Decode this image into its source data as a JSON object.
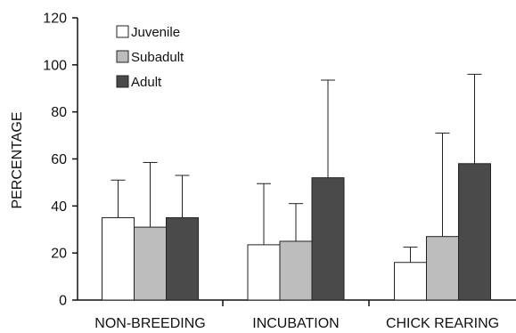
{
  "chart_data": {
    "type": "bar",
    "ylabel": "PERCENTAGE",
    "xlabel": "",
    "ylim": [
      0,
      120
    ],
    "yticks": [
      0,
      20,
      40,
      60,
      80,
      100,
      120
    ],
    "categories": [
      "NON-BREEDING",
      "INCUBATION",
      "CHICK REARING"
    ],
    "legend_position": "top-left",
    "grid": false,
    "series": [
      {
        "name": "Juvenile",
        "color": "#ffffff",
        "values": [
          35,
          23.5,
          16
        ],
        "error_upper": [
          51,
          49.5,
          22.5
        ]
      },
      {
        "name": "Subadult",
        "color": "#bdbdbd",
        "values": [
          31,
          25,
          27
        ],
        "error_upper": [
          58.5,
          41,
          71
        ]
      },
      {
        "name": "Adult",
        "color": "#4a4a4a",
        "values": [
          35,
          52,
          58
        ],
        "error_upper": [
          53,
          93.5,
          96
        ]
      }
    ]
  }
}
